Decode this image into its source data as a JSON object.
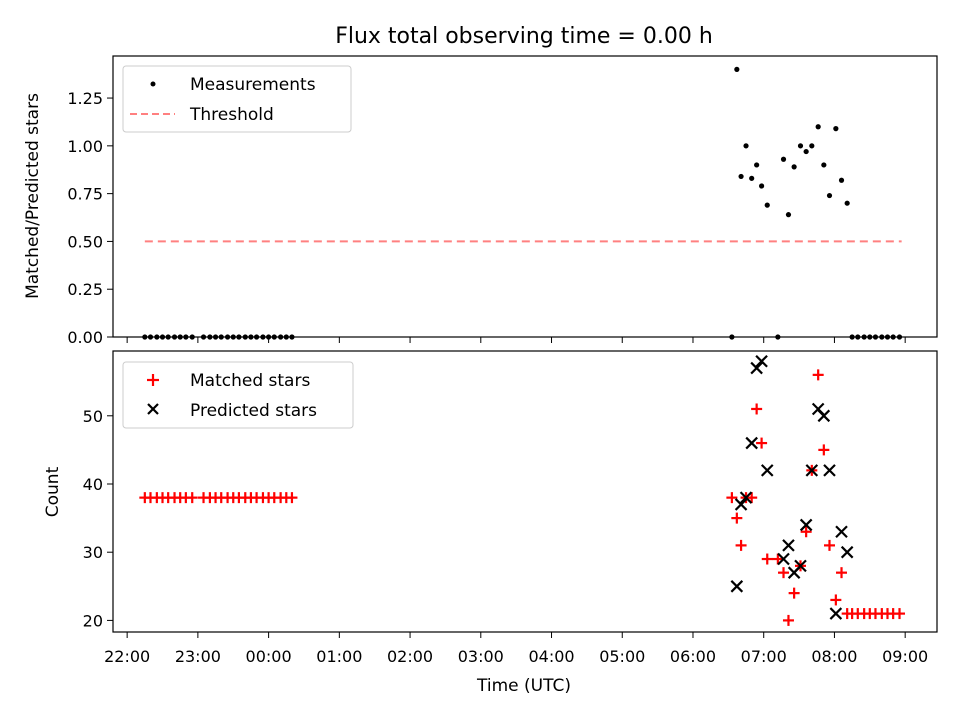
{
  "chart_data": {
    "type": "scatter",
    "title": "Flux total observing time = 0.00 h",
    "xlabel": "Time (UTC)",
    "x_ticks": [
      "22:00",
      "23:00",
      "00:00",
      "01:00",
      "02:00",
      "03:00",
      "04:00",
      "05:00",
      "06:00",
      "07:00",
      "08:00",
      "09:00"
    ],
    "x_range_hours": [
      -2.2,
      9.45
    ],
    "panels": [
      {
        "id": "ratio",
        "ylabel": "Matched/Predicted stars",
        "ylim": [
          0,
          1.47
        ],
        "yticks": [
          "0.00",
          "0.25",
          "0.50",
          "0.75",
          "1.00",
          "1.25"
        ],
        "legend_position": "top-left",
        "series": [
          {
            "name": "Measurements",
            "marker": "dot",
            "color": "#000000",
            "x": [
              -1.75,
              -1.67,
              -1.58,
              -1.5,
              -1.42,
              -1.33,
              -1.25,
              -1.17,
              -1.08,
              -0.92,
              -0.83,
              -0.75,
              -0.67,
              -0.58,
              -0.5,
              -0.42,
              -0.33,
              -0.25,
              -0.17,
              -0.08,
              0.0,
              0.08,
              0.17,
              0.25,
              0.33,
              6.55,
              6.62,
              6.68,
              6.75,
              6.83,
              6.9,
              6.97,
              7.05,
              7.2,
              7.28,
              7.35,
              7.43,
              7.52,
              7.6,
              7.68,
              7.77,
              7.85,
              7.93,
              8.02,
              8.1,
              8.18,
              8.25,
              8.33,
              8.42,
              8.5,
              8.58,
              8.67,
              8.75,
              8.83,
              8.92
            ],
            "y": [
              0,
              0,
              0,
              0,
              0,
              0,
              0,
              0,
              0,
              0,
              0,
              0,
              0,
              0,
              0,
              0,
              0,
              0,
              0,
              0,
              0,
              0,
              0,
              0,
              0,
              0,
              1.4,
              0.84,
              1.0,
              0.83,
              0.9,
              0.79,
              0.69,
              0,
              0.93,
              0.64,
              0.89,
              1.0,
              0.97,
              1.0,
              1.1,
              0.9,
              0.74,
              1.09,
              0.82,
              0.7,
              0,
              0,
              0,
              0,
              0,
              0,
              0,
              0,
              0
            ]
          },
          {
            "name": "Threshold",
            "style": "dashed",
            "color": "#ff8080",
            "x": [
              -1.75,
              8.95
            ],
            "y": [
              0.5,
              0.5
            ]
          }
        ]
      },
      {
        "id": "counts",
        "ylabel": "Count",
        "ylim": [
          18.3,
          59.5
        ],
        "yticks": [
          "20",
          "30",
          "40",
          "50"
        ],
        "legend_position": "top-left",
        "series": [
          {
            "name": "Matched stars",
            "marker": "plus",
            "color": "#ff0000",
            "x": [
              -1.75,
              -1.67,
              -1.58,
              -1.5,
              -1.42,
              -1.33,
              -1.25,
              -1.17,
              -1.08,
              -0.92,
              -0.83,
              -0.75,
              -0.67,
              -0.58,
              -0.5,
              -0.42,
              -0.33,
              -0.25,
              -0.17,
              -0.08,
              0.0,
              0.08,
              0.17,
              0.25,
              0.33,
              6.55,
              6.62,
              6.68,
              6.75,
              6.83,
              6.9,
              6.97,
              7.05,
              7.2,
              7.28,
              7.35,
              7.43,
              7.52,
              7.6,
              7.68,
              7.77,
              7.85,
              7.93,
              8.02,
              8.1,
              8.18,
              8.25,
              8.33,
              8.42,
              8.5,
              8.58,
              8.67,
              8.75,
              8.83,
              8.92
            ],
            "y": [
              38,
              38,
              38,
              38,
              38,
              38,
              38,
              38,
              38,
              38,
              38,
              38,
              38,
              38,
              38,
              38,
              38,
              38,
              38,
              38,
              38,
              38,
              38,
              38,
              38,
              38,
              35,
              31,
              38,
              38,
              51,
              46,
              29,
              29,
              27,
              20,
              24,
              28,
              33,
              42,
              56,
              45,
              31,
              23,
              27,
              21,
              21,
              21,
              21,
              21,
              21,
              21,
              21,
              21,
              21
            ]
          },
          {
            "name": "Predicted stars",
            "marker": "x",
            "color": "#000000",
            "x": [
              6.62,
              6.68,
              6.75,
              6.83,
              6.9,
              6.97,
              7.05,
              7.28,
              7.35,
              7.43,
              7.52,
              7.6,
              7.68,
              7.77,
              7.85,
              7.93,
              8.02,
              8.1,
              8.18
            ],
            "y": [
              25,
              37,
              38,
              46,
              57,
              58,
              42,
              29,
              31,
              27,
              28,
              34,
              42,
              51,
              50,
              42,
              21,
              33,
              30
            ]
          }
        ]
      }
    ]
  }
}
